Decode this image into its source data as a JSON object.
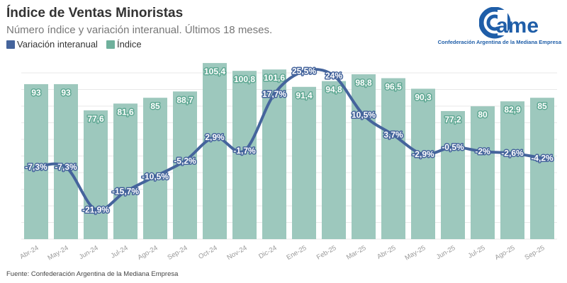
{
  "header": {
    "title": "Índice de Ventas Minoristas",
    "subtitle": "Número índice y variación interanual. Últimos 18 meses."
  },
  "logo": {
    "text": "came",
    "caption": "Confederación Argentina de la Mediana Empresa"
  },
  "footer": {
    "source": "Fuente: Confederación Argentina de la Mediana Empresa"
  },
  "chart_data": {
    "type": "bar+line",
    "categories": [
      "Abr-24",
      "May-24",
      "Jun-24",
      "Jul-24",
      "Ago-24",
      "Sep-24",
      "Oct-24",
      "Nov-24",
      "Dic-24",
      "Ene-25",
      "Feb-25",
      "Mar-25",
      "Abr-25",
      "May-25",
      "Jun-25",
      "Jul-25",
      "Ago-25",
      "Sep-25"
    ],
    "series": [
      {
        "name": "Variación interanual",
        "type": "line",
        "color": "#45649c",
        "axis": "right",
        "ylim": [
          -32,
          31
        ],
        "unit": "%",
        "values": [
          -7.3,
          -7.3,
          -21.9,
          -15.7,
          -10.5,
          -5.2,
          2.9,
          -1.7,
          17.7,
          25.5,
          24,
          10.5,
          3.7,
          -2.9,
          -0.5,
          -2,
          -2.6,
          -4.2
        ]
      },
      {
        "name": "Índice",
        "type": "bar",
        "color": "#9dc8bd",
        "axis": "left",
        "ylim": [
          2,
          110
        ],
        "values": [
          93,
          93,
          77.6,
          81.6,
          85,
          88.7,
          105.4,
          100.8,
          101.6,
          91.4,
          94.8,
          98.8,
          96.5,
          90.3,
          77.2,
          80,
          82.9,
          85
        ]
      }
    ],
    "legend": "top-left",
    "grid": true,
    "decimal_separator": ","
  }
}
